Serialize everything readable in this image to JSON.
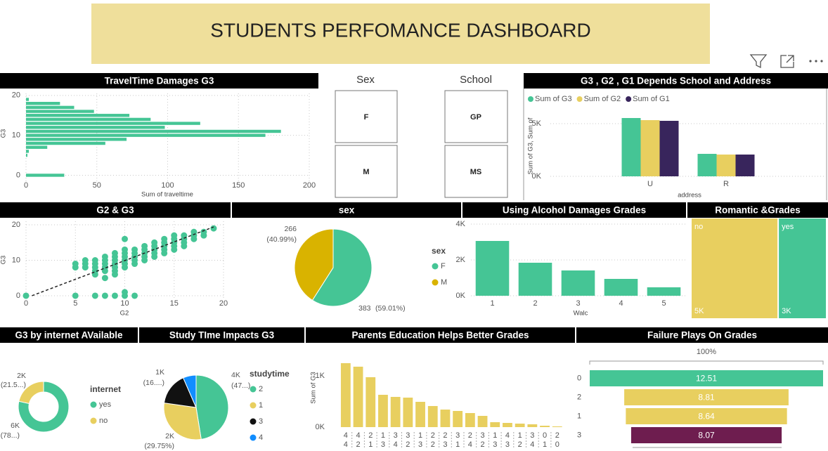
{
  "header": {
    "title": "STUDENTS PERFOMANCE DASHBOARD"
  },
  "slicers": [
    {
      "title": "Sex",
      "items": [
        "F",
        "M"
      ]
    },
    {
      "title": "School",
      "items": [
        "GP",
        "MS"
      ]
    }
  ],
  "chart_data": [
    {
      "type": "bar",
      "orientation": "horizontal",
      "title": "TravelTime Damages G3",
      "y": [
        0,
        5,
        6,
        7,
        8,
        9,
        10,
        11,
        12,
        13,
        14,
        15,
        16,
        17,
        18,
        19
      ],
      "values": [
        27,
        1,
        2,
        15,
        56,
        71,
        169,
        180,
        98,
        123,
        88,
        73,
        48,
        34,
        24,
        2
      ],
      "color": "#45c595",
      "xlim": [
        0,
        200
      ],
      "xticks": [
        0,
        50,
        100,
        150,
        200
      ],
      "ylim": [
        -1.5,
        20.5
      ],
      "yticks": [
        0,
        10,
        20
      ],
      "xlabel": "Sum of traveltime",
      "ylabel": "G3",
      "grid": true
    },
    {
      "type": "bar",
      "title": "G3 , G2 , G1 Depends School and Address",
      "categories": [
        "U",
        "R"
      ],
      "series": [
        {
          "name": "Sum of G3",
          "color": "#45c595",
          "values": [
            5533,
            2133
          ]
        },
        {
          "name": "Sum of G2",
          "color": "#e8cf5f",
          "values": [
            5333,
            2067
          ]
        },
        {
          "name": "Sum of G1",
          "color": "#38255c",
          "values": [
            5267,
            2067
          ]
        }
      ],
      "ylim": [
        0,
        6300
      ],
      "yticks": [
        {
          "value": 0,
          "label": "0K"
        },
        {
          "value": 5000,
          "label": "5K"
        }
      ],
      "xlabel": "address",
      "ylabel": "Sum of G3, Sum of",
      "grid": true
    },
    {
      "type": "scatter",
      "title": "G2 & G3",
      "color": "#45c595",
      "x": [
        0,
        5,
        7,
        8,
        9,
        10,
        11,
        10,
        5,
        5,
        6,
        6,
        6,
        7,
        7,
        7,
        7,
        7,
        8,
        8,
        8,
        8,
        8,
        8,
        9,
        9,
        9,
        9,
        9,
        9,
        9,
        10,
        10,
        10,
        10,
        10,
        10,
        10,
        11,
        11,
        11,
        11,
        11,
        12,
        12,
        12,
        12,
        12,
        13,
        13,
        13,
        13,
        13,
        14,
        14,
        14,
        14,
        14,
        15,
        15,
        15,
        15,
        15,
        16,
        16,
        16,
        16,
        17,
        17,
        17,
        18,
        18,
        19
      ],
      "y": [
        0,
        0,
        0,
        0,
        0,
        0,
        0,
        1,
        8,
        9,
        8,
        9,
        10,
        6,
        7,
        8,
        9,
        10,
        5,
        7,
        8,
        9,
        10,
        11,
        6,
        7,
        8,
        9,
        10,
        11,
        12,
        8,
        9,
        10,
        11,
        12,
        13,
        16,
        9,
        10,
        11,
        12,
        13,
        10,
        11,
        12,
        13,
        14,
        11,
        12,
        13,
        14,
        15,
        12,
        13,
        14,
        15,
        16,
        13,
        14,
        15,
        16,
        17,
        14,
        15,
        16,
        17,
        16,
        17,
        18,
        17,
        18,
        19
      ],
      "trendline": {
        "x": [
          0.6,
          19
        ],
        "y": [
          0,
          19.4
        ]
      },
      "xlim": [
        0,
        20
      ],
      "xticks": [
        0,
        5,
        10,
        15,
        20
      ],
      "ylim": [
        -1,
        21
      ],
      "yticks": [
        0,
        10,
        20
      ],
      "xlabel": "G2",
      "ylabel": "G3",
      "grid": true
    },
    {
      "type": "pie",
      "title": "sex",
      "categories": [
        "F",
        "M"
      ],
      "values": [
        383,
        266
      ],
      "percent_labels": [
        "(59.01%)",
        "(40.99%)"
      ],
      "colors": [
        "#45c595",
        "#d9b300"
      ],
      "legend_title": "sex"
    },
    {
      "type": "bar",
      "title": "Using Alcohol Damages Grades",
      "categories": [
        "1",
        "2",
        "3",
        "4",
        "5"
      ],
      "values": [
        3059,
        1843,
        1412,
        941,
        471
      ],
      "color": "#45c595",
      "ylim": [
        0,
        4000
      ],
      "yticks": [
        {
          "value": 0,
          "label": "0K"
        },
        {
          "value": 2000,
          "label": "2K"
        },
        {
          "value": 4000,
          "label": "4K"
        }
      ],
      "xlabel": "Walc",
      "grid": true
    },
    {
      "type": "treemap",
      "title": "Romantic &Grades",
      "categories": [
        "no",
        "yes"
      ],
      "values": [
        4930,
        2737
      ],
      "value_labels": [
        "5K",
        "3K"
      ],
      "colors": [
        "#e8cf5f",
        "#45c595"
      ]
    },
    {
      "type": "donut",
      "title": "G3 by internet AVailable",
      "categories": [
        "yes",
        "no"
      ],
      "values": [
        6016,
        1650
      ],
      "value_labels": [
        "6K",
        "2K"
      ],
      "percent_labels": [
        "(78...)",
        "(21.5...)"
      ],
      "colors": [
        "#45c595",
        "#e8cf5f"
      ],
      "legend_title": "internet"
    },
    {
      "type": "pie",
      "title": "Study TIme Impacts G3",
      "categories": [
        "2",
        "1",
        "3",
        "4"
      ],
      "values": [
        3640,
        2281,
        1245,
        501
      ],
      "value_labels": [
        "4K",
        "2K",
        "1K",
        null
      ],
      "percent_labels": [
        "(47...)",
        "(29.75%)",
        "(16....)",
        null
      ],
      "colors": [
        "#45c595",
        "#e8cf5f",
        "#111111",
        "#118dff"
      ],
      "legend_title": "studytime"
    },
    {
      "type": "bar",
      "title": "Parents Education Helps Better Grades",
      "categories": [
        [
          "4",
          "4"
        ],
        [
          "4",
          "2"
        ],
        [
          "2",
          "1"
        ],
        [
          "1",
          "3"
        ],
        [
          "3",
          "4"
        ],
        [
          "3",
          "2"
        ],
        [
          "1",
          "3"
        ],
        [
          "2",
          "2"
        ],
        [
          "2",
          "3"
        ],
        [
          "3",
          "1"
        ],
        [
          "2",
          "4"
        ],
        [
          "3",
          "2"
        ],
        [
          "1",
          "3"
        ],
        [
          "4",
          "3"
        ],
        [
          "1",
          "2"
        ],
        [
          "3",
          "4"
        ],
        [
          "0",
          "1"
        ],
        [
          "2",
          "0"
        ]
      ],
      "values": [
        1247,
        1178,
        973,
        630,
        589,
        575,
        493,
        411,
        342,
        315,
        274,
        219,
        96,
        82,
        68,
        55,
        27,
        14
      ],
      "color": "#e8cf5f",
      "ylim": [
        0,
        1320
      ],
      "yticks": [
        {
          "value": 0,
          "label": "0K"
        },
        {
          "value": 1000,
          "label": "1K"
        }
      ],
      "ylabel": "Sum of G3"
    },
    {
      "type": "funnel",
      "title": "Failure Plays On Grades",
      "categories": [
        "0",
        "2",
        "1",
        "3"
      ],
      "values": [
        12.51,
        8.81,
        8.64,
        8.07
      ],
      "colors": [
        "#45c595",
        "#e8cf5f",
        "#e8cf5f",
        "#6e1d4f"
      ],
      "top_label": "100%"
    }
  ]
}
